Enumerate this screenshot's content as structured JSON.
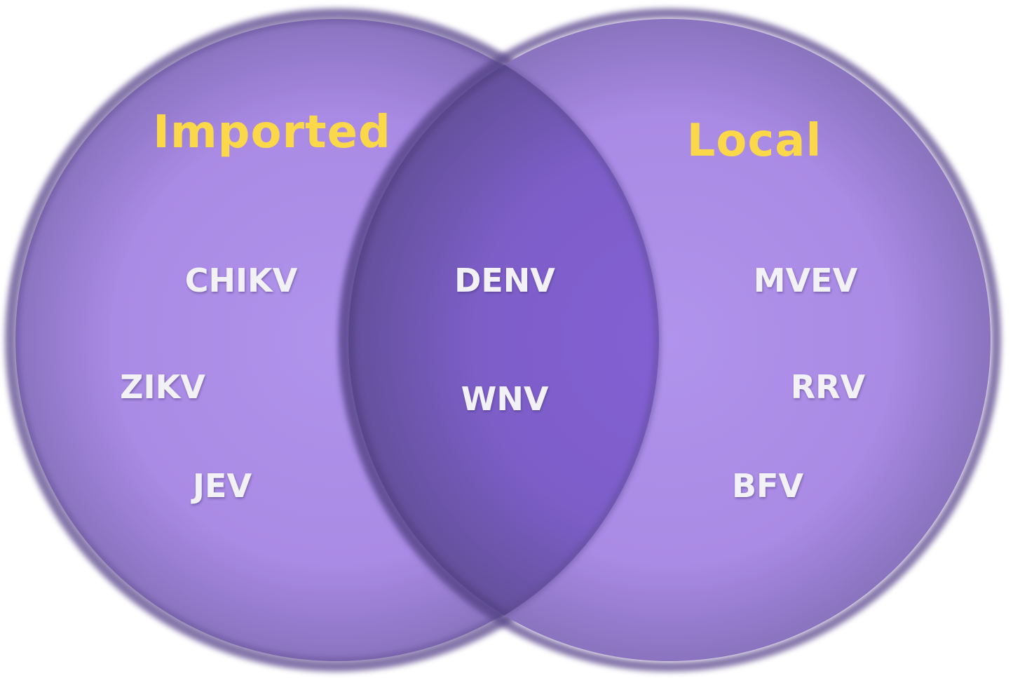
{
  "diagram": {
    "type": "venn",
    "colors": {
      "circle_fill": "#ad8ce9",
      "circle_edge": "#5a4a8c",
      "overlap_fill": "#7a5cc6",
      "title_color": "#fbd84a",
      "label_color": "#f1f1f6"
    },
    "sets": [
      {
        "title": "Imported",
        "items": [
          "CHIKV",
          "ZIKV",
          "JEV"
        ]
      },
      {
        "title": "Local",
        "items": [
          "MVEV",
          "RRV",
          "BFV"
        ]
      }
    ],
    "intersection": {
      "items": [
        "DENV",
        "WNV"
      ]
    }
  }
}
